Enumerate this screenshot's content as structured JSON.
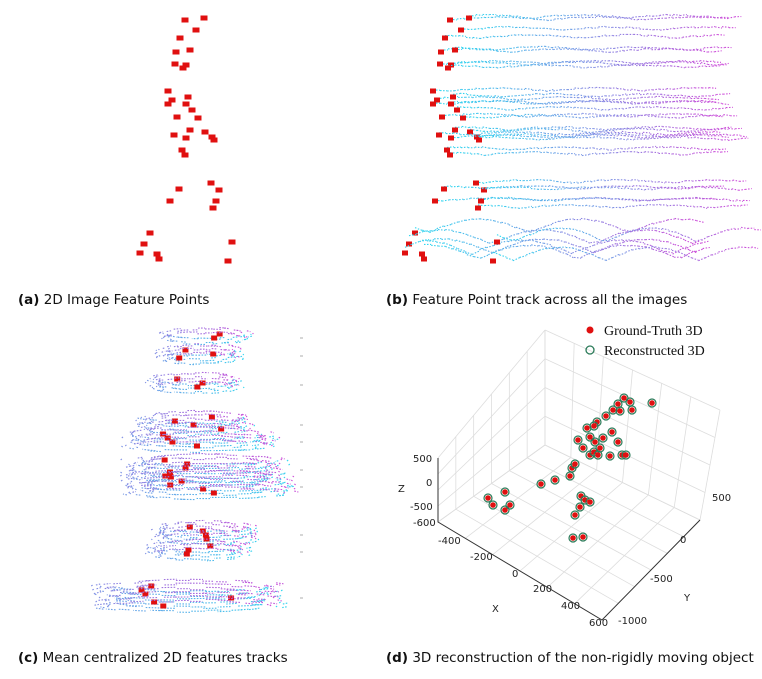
{
  "captions": {
    "a": {
      "tag": "(a)",
      "text": "2D Image Feature Points"
    },
    "b": {
      "tag": "(b)",
      "text": "Feature Point track across all the images"
    },
    "c": {
      "tag": "(c)",
      "text": "Mean centralized 2D features tracks"
    },
    "d": {
      "tag": "(d)",
      "text": "3D reconstruction of the non-rigidly moving object"
    }
  },
  "colors": {
    "points": "#e01010",
    "track_start": "#2fd6f0",
    "track_end": "#d24ad8",
    "reconstructed_edge": "#2a7a58",
    "grid": "#dddddd"
  },
  "chart_data": [
    {
      "type": "scatter",
      "title": "",
      "points": [
        [
          185,
          20
        ],
        [
          204,
          18
        ],
        [
          180,
          38
        ],
        [
          196,
          30
        ],
        [
          176,
          52
        ],
        [
          190,
          50
        ],
        [
          175,
          64
        ],
        [
          186,
          65
        ],
        [
          183,
          68
        ],
        [
          168,
          91
        ],
        [
          172,
          100
        ],
        [
          188,
          97
        ],
        [
          168,
          104
        ],
        [
          186,
          104
        ],
        [
          192,
          110
        ],
        [
          198,
          118
        ],
        [
          177,
          117
        ],
        [
          190,
          130
        ],
        [
          205,
          132
        ],
        [
          212,
          137
        ],
        [
          214,
          140
        ],
        [
          174,
          135
        ],
        [
          186,
          138
        ],
        [
          182,
          150
        ],
        [
          185,
          155
        ],
        [
          211,
          183
        ],
        [
          219,
          190
        ],
        [
          179,
          189
        ],
        [
          170,
          201
        ],
        [
          216,
          201
        ],
        [
          213,
          208
        ],
        [
          150,
          233
        ],
        [
          144,
          244
        ],
        [
          157,
          254
        ],
        [
          232,
          242
        ],
        [
          140,
          253
        ],
        [
          159,
          259
        ],
        [
          228,
          261
        ]
      ]
    },
    {
      "type": "line",
      "title": "",
      "series_count": 38
    },
    {
      "type": "line",
      "title": "",
      "series_count": 38
    },
    {
      "type": "scatter",
      "title": "",
      "legend": [
        "Ground-Truth 3D",
        "Reconstructed 3D"
      ],
      "xlabel": "X",
      "ylabel": "Y",
      "zlabel": "Z",
      "x_ticks": [
        "-400",
        "-200",
        "0",
        "200",
        "400",
        "600"
      ],
      "y_ticks": [
        "500",
        "0",
        "-500",
        "-1000"
      ],
      "z_ticks": [
        "500",
        "0",
        "-500",
        "-600"
      ],
      "points": [
        [
          488,
          498
        ],
        [
          505,
          492
        ],
        [
          493,
          505
        ],
        [
          505,
          510
        ],
        [
          510,
          505
        ],
        [
          541,
          484
        ],
        [
          555,
          480
        ],
        [
          570,
          476
        ],
        [
          572,
          468
        ],
        [
          575,
          464
        ],
        [
          581,
          496
        ],
        [
          585,
          500
        ],
        [
          580,
          507
        ],
        [
          590,
          502
        ],
        [
          575,
          515
        ],
        [
          573,
          538
        ],
        [
          583,
          537
        ],
        [
          578,
          440
        ],
        [
          583,
          448
        ],
        [
          590,
          455
        ],
        [
          594,
          452
        ],
        [
          598,
          455
        ],
        [
          600,
          448
        ],
        [
          595,
          442
        ],
        [
          590,
          437
        ],
        [
          587,
          428
        ],
        [
          597,
          422
        ],
        [
          606,
          416
        ],
        [
          613,
          410
        ],
        [
          618,
          404
        ],
        [
          624,
          398
        ],
        [
          630,
          402
        ],
        [
          632,
          410
        ],
        [
          612,
          432
        ],
        [
          618,
          442
        ],
        [
          622,
          455
        ],
        [
          626,
          455
        ],
        [
          610,
          456
        ],
        [
          603,
          438
        ],
        [
          594,
          426
        ],
        [
          620,
          411
        ],
        [
          652,
          403
        ]
      ]
    }
  ]
}
